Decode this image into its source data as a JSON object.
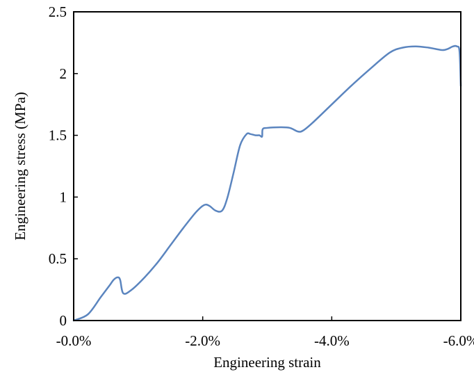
{
  "chart_data": {
    "type": "line",
    "title": "",
    "xlabel": "Engineering strain",
    "ylabel": "Engineering stress (MPa)",
    "xlim": [
      0,
      -6
    ],
    "ylim": [
      0,
      2.5
    ],
    "grid": false,
    "legend": "none",
    "x_ticks": [
      {
        "value": 0,
        "label": "-0.0%"
      },
      {
        "value": -2,
        "label": "-2.0%"
      },
      {
        "value": -4,
        "label": "-4.0%"
      },
      {
        "value": -6,
        "label": "-6.0%"
      }
    ],
    "y_ticks": [
      {
        "value": 0,
        "label": "0"
      },
      {
        "value": 0.5,
        "label": "0.5"
      },
      {
        "value": 1,
        "label": "1"
      },
      {
        "value": 1.5,
        "label": "1.5"
      },
      {
        "value": 2,
        "label": "2"
      },
      {
        "value": 2.5,
        "label": "2.5"
      }
    ],
    "colors": {
      "series": "#5B85BF",
      "axis": "#000000"
    },
    "series": [
      {
        "x": [
          0,
          -0.22,
          -0.42,
          -0.55,
          -0.62,
          -0.68,
          -0.72,
          -0.77,
          -0.9,
          -1.1,
          -1.3,
          -1.5,
          -1.7,
          -1.9,
          -2.02,
          -2.1,
          -2.2,
          -2.3,
          -2.38,
          -2.48,
          -2.58,
          -2.68,
          -2.74,
          -2.82,
          -2.88,
          -2.92,
          -2.93,
          -3.0,
          -3.2,
          -3.35,
          -3.48,
          -3.56,
          -3.7,
          -4.0,
          -4.3,
          -4.6,
          -4.9,
          -5.1,
          -5.3,
          -5.5,
          -5.6,
          -5.72,
          -5.8,
          -5.88,
          -5.94,
          -5.98,
          -6.0
        ],
        "y": [
          0,
          0.05,
          0.19,
          0.28,
          0.33,
          0.35,
          0.33,
          0.22,
          0.25,
          0.35,
          0.47,
          0.61,
          0.75,
          0.88,
          0.935,
          0.93,
          0.89,
          0.89,
          0.99,
          1.2,
          1.42,
          1.51,
          1.51,
          1.5,
          1.5,
          1.49,
          1.55,
          1.56,
          1.565,
          1.56,
          1.53,
          1.54,
          1.6,
          1.75,
          1.9,
          2.04,
          2.17,
          2.21,
          2.22,
          2.21,
          2.2,
          2.19,
          2.2,
          2.22,
          2.22,
          2.18,
          1.9
        ]
      }
    ]
  }
}
